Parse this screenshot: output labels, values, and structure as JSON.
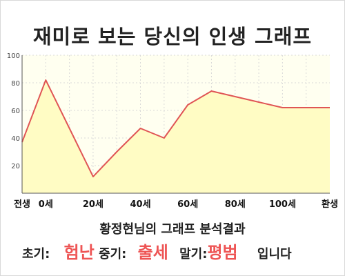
{
  "chart_data": {
    "type": "area",
    "title": "재미로 보는 당신의 인생 그래프",
    "categories": [
      "전생",
      "0세",
      "20세",
      "40세",
      "60세",
      "80세",
      "100세",
      "환생"
    ],
    "x": [
      "전생",
      "0세",
      "",
      "20세",
      "",
      "40세",
      "",
      "60세",
      "",
      "80세",
      "",
      "100세",
      "",
      "환생"
    ],
    "values": [
      37,
      82,
      47,
      12,
      30,
      47,
      40,
      64,
      74,
      70,
      66,
      62,
      62,
      62
    ],
    "ylim": [
      0,
      100
    ],
    "yticks": [
      20,
      40,
      60,
      80,
      100
    ],
    "grid": true,
    "colors": {
      "line": "#e05555",
      "fill": "#fffcc4",
      "plot_bg": "#fffff0",
      "grid": "#d8d8d8"
    }
  },
  "summary": {
    "subtitle": "황정현님의 그래프 분석결과",
    "early_label": "초기:",
    "early_value": "험난",
    "mid_label": "중기:",
    "mid_value": "출세",
    "late_label": "말기:",
    "late_value": "평범",
    "suffix": "입니다"
  }
}
